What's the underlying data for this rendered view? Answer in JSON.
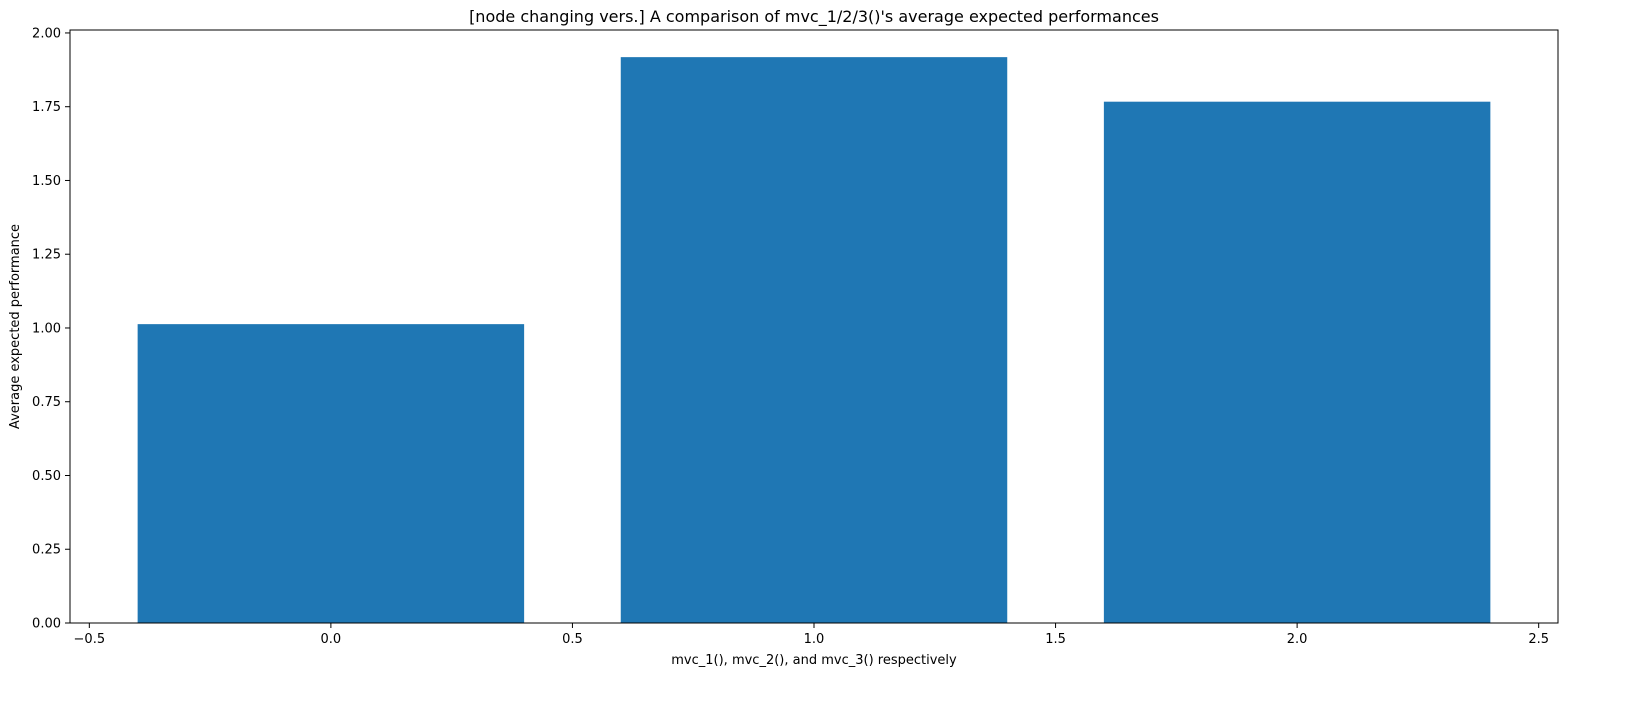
{
  "chart_data": {
    "type": "bar",
    "title": "[node changing vers.] A comparison of mvc_1/2/3()'s average expected performances",
    "xlabel": "mvc_1(), mvc_2(), and mvc_3() respectively",
    "ylabel": "Average expected performance",
    "x": [
      0,
      1,
      2
    ],
    "values": [
      1.013,
      1.918,
      1.767
    ],
    "bar_width": 0.8,
    "xlim": [
      -0.54,
      2.54
    ],
    "ylim": [
      0,
      2.01
    ],
    "xticks": [
      -0.5,
      0.0,
      0.5,
      1.0,
      1.5,
      2.0,
      2.5
    ],
    "xtick_labels": [
      "−0.5",
      "0.0",
      "0.5",
      "1.0",
      "1.5",
      "2.0",
      "2.5"
    ],
    "yticks": [
      0.0,
      0.25,
      0.5,
      0.75,
      1.0,
      1.25,
      1.5,
      1.75,
      2.0
    ],
    "ytick_labels": [
      "0.00",
      "0.25",
      "0.50",
      "0.75",
      "1.00",
      "1.25",
      "1.50",
      "1.75",
      "2.00"
    ],
    "bar_color": "#1f77b4",
    "grid": false,
    "legend": "none"
  }
}
